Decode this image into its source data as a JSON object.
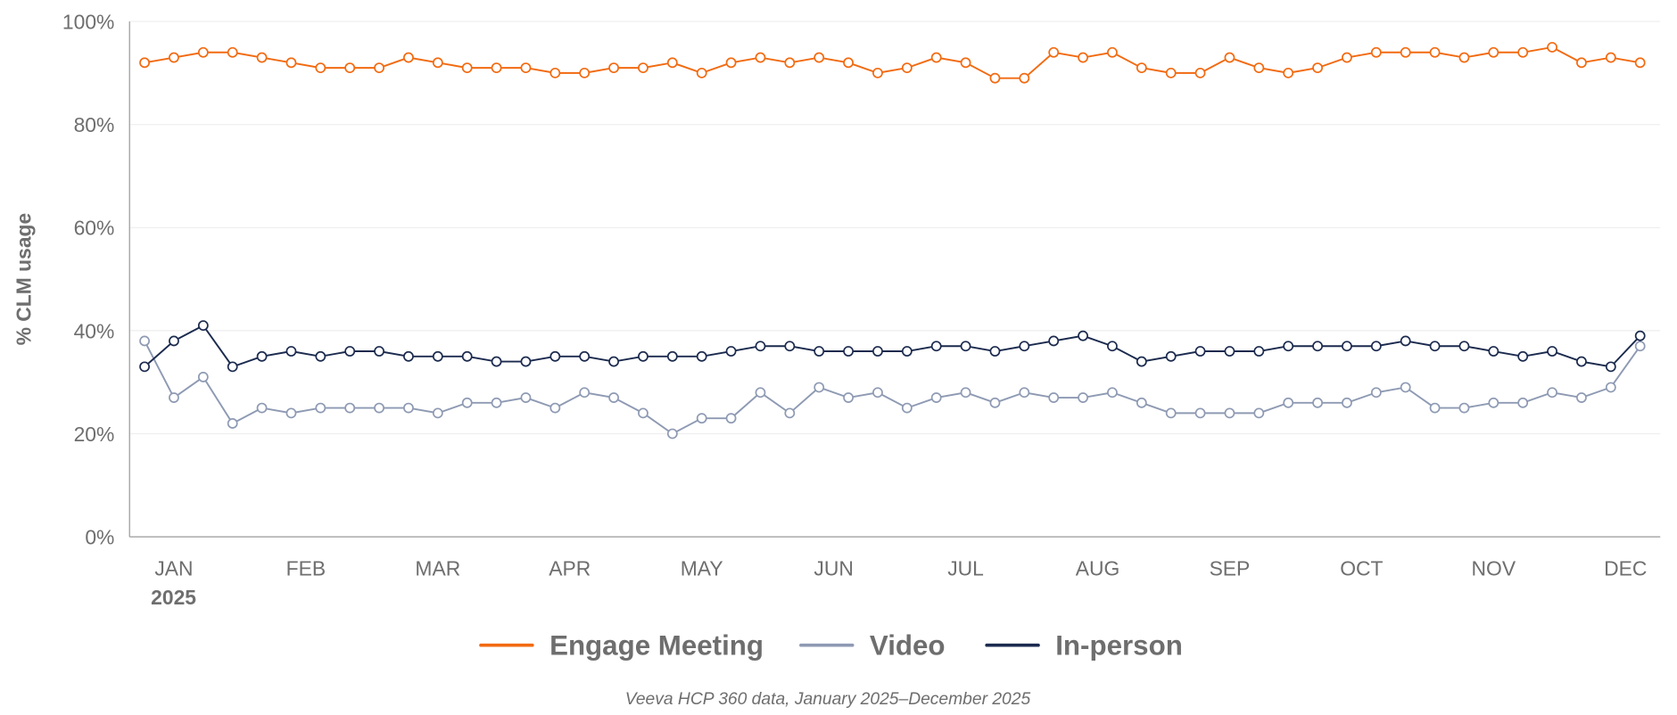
{
  "chart_data": {
    "type": "line",
    "ylabel": "% CLM usage",
    "xlabel": "",
    "ylim": [
      0,
      100
    ],
    "yticks": [
      "0%",
      "20%",
      "40%",
      "60%",
      "80%",
      "100%"
    ],
    "ytick_values": [
      0,
      20,
      40,
      60,
      80,
      100
    ],
    "xtick_labels": [
      "JAN",
      "FEB",
      "MAR",
      "APR",
      "MAY",
      "JUN",
      "JUL",
      "AUG",
      "SEP",
      "OCT",
      "NOV",
      "DEC"
    ],
    "year_label": "2025",
    "grid": true,
    "legend_position": "bottom",
    "caption": "Veeva HCP 360 data, January 2025–December 2025",
    "series": [
      {
        "name": "Engage Meeting",
        "color": "#f26a10",
        "values": [
          92,
          93,
          94,
          94,
          93,
          92,
          91,
          91,
          91,
          93,
          92,
          91,
          91,
          91,
          90,
          90,
          91,
          91,
          92,
          90,
          92,
          93,
          92,
          93,
          92,
          90,
          91,
          93,
          92,
          89,
          89,
          94,
          93,
          94,
          91,
          90,
          90,
          93,
          91,
          90,
          91,
          93,
          94,
          94,
          94,
          93,
          94,
          94,
          95,
          92,
          93,
          92
        ]
      },
      {
        "name": "Video",
        "color": "#8e9ab3",
        "values": [
          38,
          27,
          31,
          22,
          25,
          24,
          25,
          25,
          25,
          25,
          24,
          26,
          26,
          27,
          25,
          28,
          27,
          24,
          20,
          23,
          23,
          28,
          24,
          29,
          27,
          28,
          25,
          27,
          28,
          26,
          28,
          27,
          27,
          28,
          26,
          24,
          24,
          24,
          24,
          26,
          26,
          26,
          28,
          29,
          25,
          25,
          26,
          26,
          28,
          27,
          29,
          37
        ]
      },
      {
        "name": "In-person",
        "color": "#1b2a4e",
        "values": [
          33,
          38,
          41,
          33,
          35,
          36,
          35,
          36,
          36,
          35,
          35,
          35,
          34,
          34,
          35,
          35,
          34,
          35,
          35,
          35,
          36,
          37,
          37,
          36,
          36,
          36,
          36,
          37,
          37,
          36,
          37,
          38,
          39,
          37,
          34,
          35,
          36,
          36,
          36,
          37,
          37,
          37,
          37,
          38,
          37,
          37,
          36,
          35,
          36,
          34,
          33,
          39
        ]
      }
    ]
  }
}
